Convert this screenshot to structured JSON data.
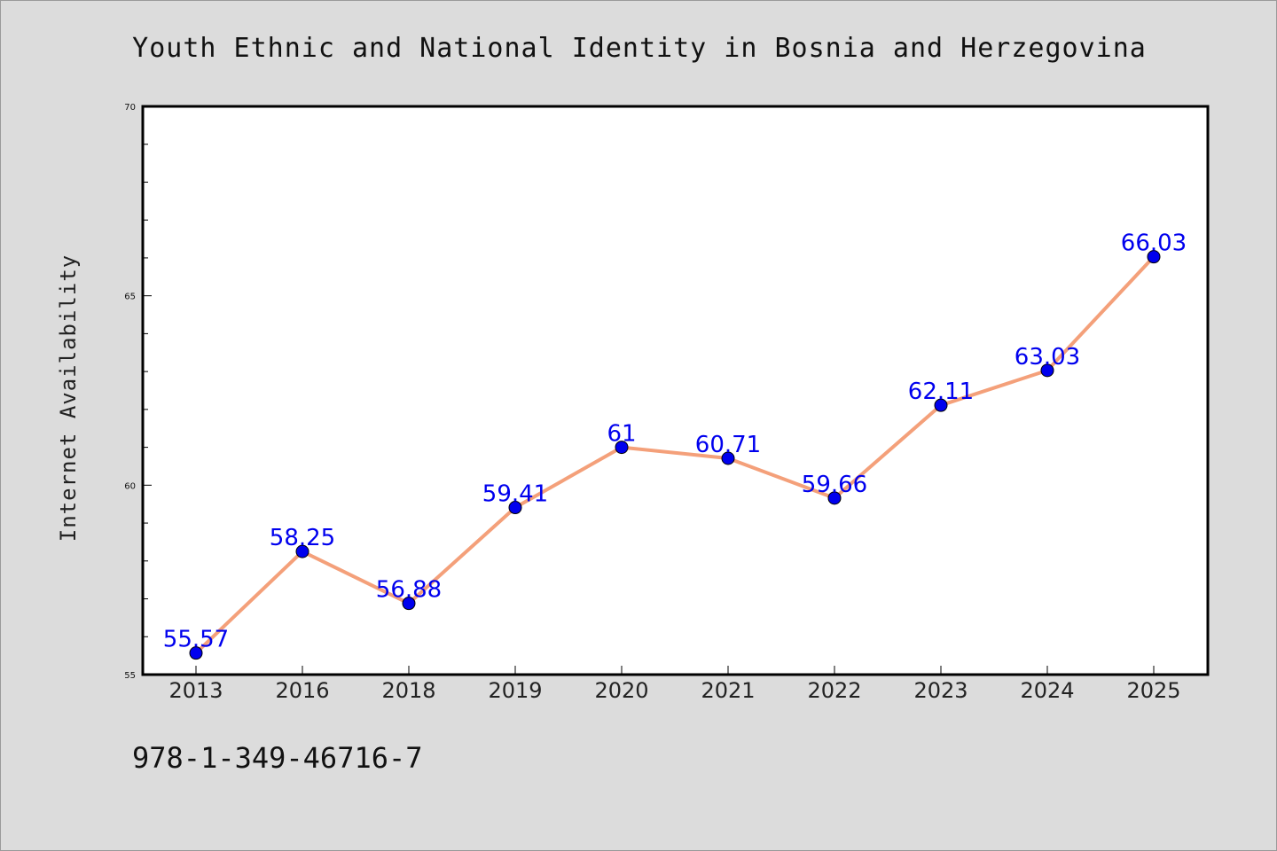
{
  "chart_data": {
    "type": "line",
    "title": "Youth Ethnic and National Identity in Bosnia and Herzegovina",
    "ylabel": "Internet Availability",
    "xlabel": "",
    "categories": [
      "2013",
      "2016",
      "2018",
      "2019",
      "2020",
      "2021",
      "2022",
      "2023",
      "2024",
      "2025"
    ],
    "series": [
      {
        "values": [
          55.57,
          58.25,
          56.88,
          59.41,
          61,
          60.71,
          59.66,
          62.11,
          63.03,
          66.03
        ],
        "labels": [
          "55.57",
          "58.25",
          "56.88",
          "59.41",
          "61",
          "60.71",
          "59.66",
          "62.11",
          "63.03",
          "66.03"
        ],
        "line_color": "#f4a07a",
        "marker_color": "#0000ee"
      }
    ],
    "ylim": [
      55,
      70
    ],
    "yticks": [
      "55",
      "60",
      "65",
      "70"
    ],
    "grid": false,
    "legend": "none",
    "label_color": "#0000ee"
  },
  "footer": {
    "isbn": "978-1-349-46716-7"
  },
  "colors": {
    "background": "#dcdcdc",
    "plot_area": "#ffffff"
  }
}
